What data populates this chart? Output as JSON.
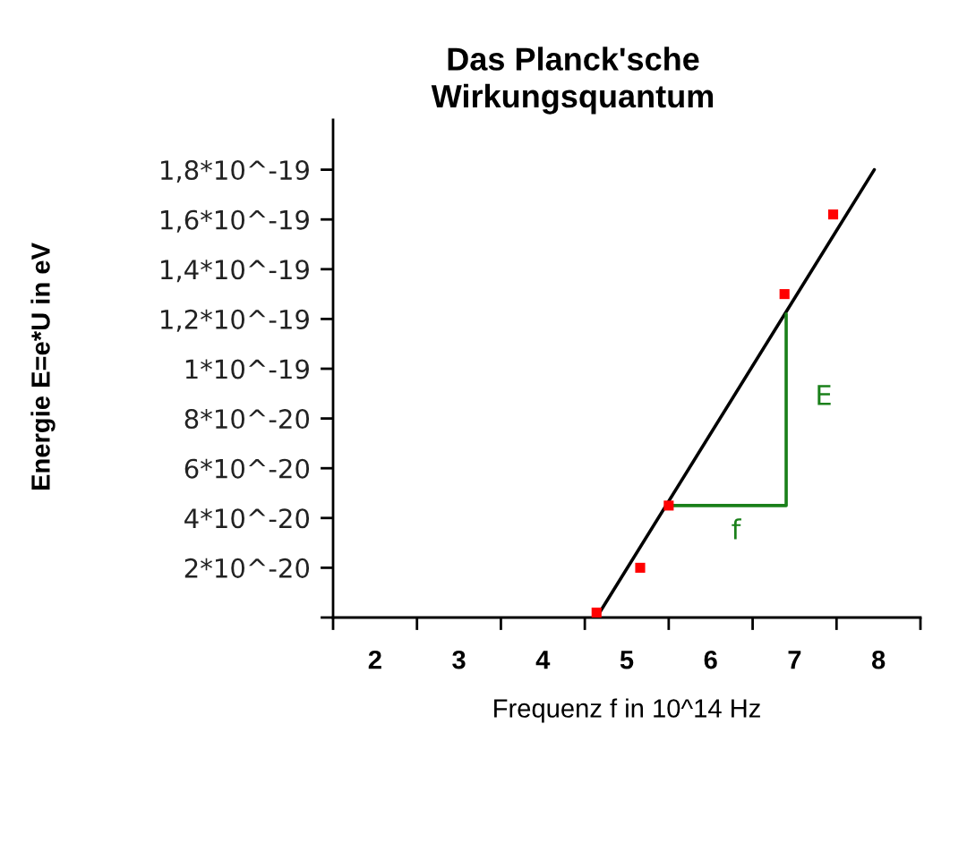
{
  "chart_data": {
    "type": "scatter",
    "title": "Das Planck'sche\nWirkungsquantum",
    "xlabel": "Frequenz f in 10^14 Hz",
    "ylabel": "Energie E=e*U in eV",
    "xlim": [
      1.5,
      8.5
    ],
    "xticks": [
      {
        "value": 1.5,
        "label": null
      },
      2,
      {
        "value": 2.5,
        "label": null
      },
      3,
      {
        "value": 3.5,
        "label": null
      },
      4,
      {
        "value": 4.5,
        "label": null
      },
      5,
      {
        "value": 5.5,
        "label": null
      },
      6,
      {
        "value": 6.5,
        "label": null
      },
      7,
      {
        "value": 7.5,
        "label": null
      },
      8,
      {
        "value": 8.5,
        "label": null
      }
    ],
    "ylim": [
      0,
      2e-19
    ],
    "yticks": [
      {
        "value": 0,
        "label": null
      },
      {
        "value": 2e-20,
        "label": "2*10^-20"
      },
      {
        "value": 4e-20,
        "label": "4*10^-20"
      },
      {
        "value": 6e-20,
        "label": "6*10^-20"
      },
      {
        "value": 8e-20,
        "label": "8*10^-20"
      },
      {
        "value": 1e-19,
        "label": "1*10^-19"
      },
      {
        "value": 1.2e-19,
        "label": "1,2*10^-19"
      },
      {
        "value": 1.4e-19,
        "label": "1,4*10^-19"
      },
      {
        "value": 1.6e-19,
        "label": "1,6*10^-19"
      },
      {
        "value": 1.8e-19,
        "label": "1,8*10^-19"
      }
    ],
    "series": [
      {
        "x": [
          4.64,
          5.16,
          5.5,
          6.88,
          7.46
        ],
        "values": [
          2e-21,
          2e-20,
          4.5e-20,
          1.3e-19,
          1.62e-19
        ],
        "color": "#ff0000",
        "marker": "square"
      },
      {
        "type": "line",
        "x": [
          4.64,
          7.95
        ],
        "values": [
          0,
          1.8e-19
        ],
        "color": "#000000"
      },
      {
        "type": "line",
        "x": [
          5.5,
          6.9,
          6.9
        ],
        "values": [
          4.5e-20,
          4.5e-20,
          1.22e-19
        ],
        "color": "#1a801a"
      }
    ],
    "annotations": [
      "f",
      "E"
    ]
  }
}
